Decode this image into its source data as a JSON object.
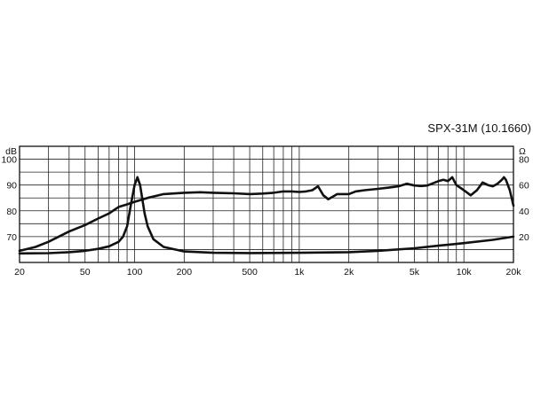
{
  "chart_data": {
    "type": "line",
    "title": "SPX-31M (10.1660)",
    "x_scale": "log",
    "xlim": [
      20,
      20000
    ],
    "x_ticks": [
      {
        "value": 20,
        "label": "20"
      },
      {
        "value": 50,
        "label": "50"
      },
      {
        "value": 100,
        "label": "100"
      },
      {
        "value": 200,
        "label": "200"
      },
      {
        "value": 500,
        "label": "500"
      },
      {
        "value": 1000,
        "label": "1k"
      },
      {
        "value": 2000,
        "label": "2k"
      },
      {
        "value": 5000,
        "label": "5k"
      },
      {
        "value": 10000,
        "label": "10k"
      },
      {
        "value": 20000,
        "label": "20k"
      }
    ],
    "left_axis": {
      "unit": "dB",
      "ylim": [
        60,
        105
      ],
      "ticks": [
        {
          "value": 70,
          "label": "70"
        },
        {
          "value": 80,
          "label": "80"
        },
        {
          "value": 90,
          "label": "90"
        },
        {
          "value": 100,
          "label": "100"
        }
      ]
    },
    "right_axis": {
      "unit": "Ω",
      "ylim": [
        0,
        90
      ],
      "ticks": [
        {
          "value": 20,
          "label": "20"
        },
        {
          "value": 40,
          "label": "40"
        },
        {
          "value": 60,
          "label": "60"
        },
        {
          "value": 80,
          "label": "80"
        }
      ]
    },
    "grid": true,
    "series": [
      {
        "axis": "left",
        "points": [
          [
            20,
            64.5
          ],
          [
            25,
            66
          ],
          [
            30,
            68
          ],
          [
            40,
            72
          ],
          [
            50,
            74.5
          ],
          [
            60,
            77
          ],
          [
            70,
            79
          ],
          [
            80,
            81.5
          ],
          [
            90,
            82.5
          ],
          [
            100,
            83.5
          ],
          [
            120,
            85
          ],
          [
            150,
            86.5
          ],
          [
            200,
            87
          ],
          [
            250,
            87.2
          ],
          [
            300,
            87
          ],
          [
            400,
            86.8
          ],
          [
            500,
            86.5
          ],
          [
            600,
            86.7
          ],
          [
            700,
            87
          ],
          [
            800,
            87.5
          ],
          [
            900,
            87.5
          ],
          [
            1000,
            87.3
          ],
          [
            1100,
            87.5
          ],
          [
            1200,
            88
          ],
          [
            1300,
            89.5
          ],
          [
            1400,
            86
          ],
          [
            1500,
            84.5
          ],
          [
            1600,
            85.5
          ],
          [
            1700,
            86.5
          ],
          [
            1800,
            86.5
          ],
          [
            2000,
            86.5
          ],
          [
            2200,
            87.5
          ],
          [
            2500,
            88
          ],
          [
            3000,
            88.5
          ],
          [
            3500,
            89
          ],
          [
            4000,
            89.5
          ],
          [
            4500,
            90.5
          ],
          [
            5000,
            89.8
          ],
          [
            5500,
            89.6
          ],
          [
            6000,
            89.8
          ],
          [
            7000,
            91.5
          ],
          [
            7500,
            92
          ],
          [
            8000,
            91.5
          ],
          [
            8500,
            93
          ],
          [
            9000,
            90
          ],
          [
            10000,
            88
          ],
          [
            11000,
            86
          ],
          [
            12000,
            88
          ],
          [
            13000,
            91
          ],
          [
            14000,
            90
          ],
          [
            15000,
            89.5
          ],
          [
            16000,
            90.5
          ],
          [
            17000,
            92
          ],
          [
            17500,
            93
          ],
          [
            18000,
            92
          ],
          [
            19000,
            88
          ],
          [
            20000,
            82
          ]
        ]
      },
      {
        "axis": "right",
        "points": [
          [
            20,
            7
          ],
          [
            30,
            7.2
          ],
          [
            40,
            8
          ],
          [
            50,
            9
          ],
          [
            60,
            10.5
          ],
          [
            70,
            12.5
          ],
          [
            80,
            16
          ],
          [
            85,
            20
          ],
          [
            90,
            28
          ],
          [
            95,
            45
          ],
          [
            100,
            60
          ],
          [
            104,
            66
          ],
          [
            108,
            60
          ],
          [
            115,
            38
          ],
          [
            120,
            28
          ],
          [
            130,
            18
          ],
          [
            150,
            12
          ],
          [
            200,
            8.5
          ],
          [
            300,
            7.5
          ],
          [
            500,
            7.3
          ],
          [
            1000,
            7.5
          ],
          [
            2000,
            8
          ],
          [
            3000,
            9
          ],
          [
            5000,
            11
          ],
          [
            7000,
            13
          ],
          [
            10000,
            15
          ],
          [
            15000,
            17.5
          ],
          [
            20000,
            20
          ]
        ]
      }
    ]
  }
}
